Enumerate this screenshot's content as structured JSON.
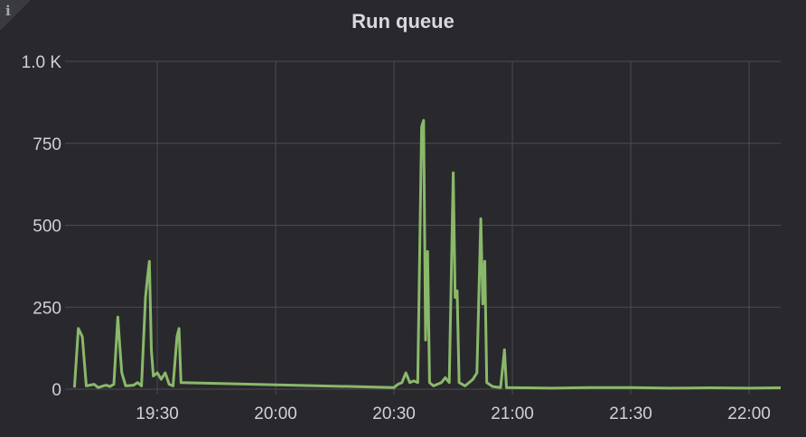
{
  "panel": {
    "title": "Run queue",
    "info_icon": "info-icon",
    "info_glyph": "i"
  },
  "colors": {
    "background": "#29292d",
    "grid": "#4a4b50",
    "series": "#8ab96a",
    "text": "#d0d1d4"
  },
  "chart_data": {
    "type": "line",
    "title": "Run queue",
    "xlabel": "",
    "ylabel": "",
    "grid": true,
    "legend": "none",
    "x_ticks": [
      "19:30",
      "20:00",
      "20:30",
      "21:00",
      "21:30",
      "22:00"
    ],
    "y_ticks": [
      "0",
      "250",
      "500",
      "750",
      "1.0 K"
    ],
    "y_tick_values": [
      0,
      250,
      500,
      750,
      1000
    ],
    "xlim": [
      "19:08",
      "22:08"
    ],
    "ylim": [
      0,
      1000
    ],
    "series": [
      {
        "name": "",
        "color": "#8ab96a",
        "points": [
          [
            "19:09",
            5
          ],
          [
            "19:10",
            185
          ],
          [
            "19:11",
            160
          ],
          [
            "19:12",
            10
          ],
          [
            "19:14",
            15
          ],
          [
            "19:15",
            5
          ],
          [
            "19:17",
            12
          ],
          [
            "19:18",
            8
          ],
          [
            "19:19",
            15
          ],
          [
            "19:20",
            220
          ],
          [
            "19:20:30",
            130
          ],
          [
            "19:21",
            50
          ],
          [
            "19:22",
            10
          ],
          [
            "19:24",
            12
          ],
          [
            "19:25",
            20
          ],
          [
            "19:26",
            10
          ],
          [
            "19:27",
            280
          ],
          [
            "19:27:30",
            340
          ],
          [
            "19:28",
            390
          ],
          [
            "19:28:30",
            120
          ],
          [
            "19:29",
            40
          ],
          [
            "19:30",
            50
          ],
          [
            "19:31",
            30
          ],
          [
            "19:32",
            50
          ],
          [
            "19:33",
            15
          ],
          [
            "19:34",
            10
          ],
          [
            "19:35",
            160
          ],
          [
            "19:35:30",
            185
          ],
          [
            "19:36",
            20
          ],
          [
            "20:30",
            5
          ],
          [
            "20:31",
            15
          ],
          [
            "20:32",
            20
          ],
          [
            "20:33",
            50
          ],
          [
            "20:34",
            20
          ],
          [
            "20:35",
            25
          ],
          [
            "20:36",
            20
          ],
          [
            "20:37",
            800
          ],
          [
            "20:37:30",
            820
          ],
          [
            "20:38",
            150
          ],
          [
            "20:38:30",
            420
          ],
          [
            "20:39",
            20
          ],
          [
            "20:40",
            10
          ],
          [
            "20:42",
            20
          ],
          [
            "20:43",
            35
          ],
          [
            "20:44",
            20
          ],
          [
            "20:45",
            660
          ],
          [
            "20:45:30",
            280
          ],
          [
            "20:46",
            300
          ],
          [
            "20:46:30",
            20
          ],
          [
            "20:48",
            10
          ],
          [
            "20:50",
            30
          ],
          [
            "20:51",
            50
          ],
          [
            "20:52",
            520
          ],
          [
            "20:52:30",
            260
          ],
          [
            "20:53",
            390
          ],
          [
            "20:53:30",
            20
          ],
          [
            "20:55",
            8
          ],
          [
            "20:57",
            5
          ],
          [
            "20:58",
            120
          ],
          [
            "20:58:30",
            5
          ],
          [
            "21:10",
            3
          ],
          [
            "21:20",
            5
          ],
          [
            "21:30",
            5
          ],
          [
            "21:40",
            3
          ],
          [
            "21:50",
            4
          ],
          [
            "22:00",
            3
          ],
          [
            "22:08",
            4
          ]
        ]
      }
    ]
  }
}
